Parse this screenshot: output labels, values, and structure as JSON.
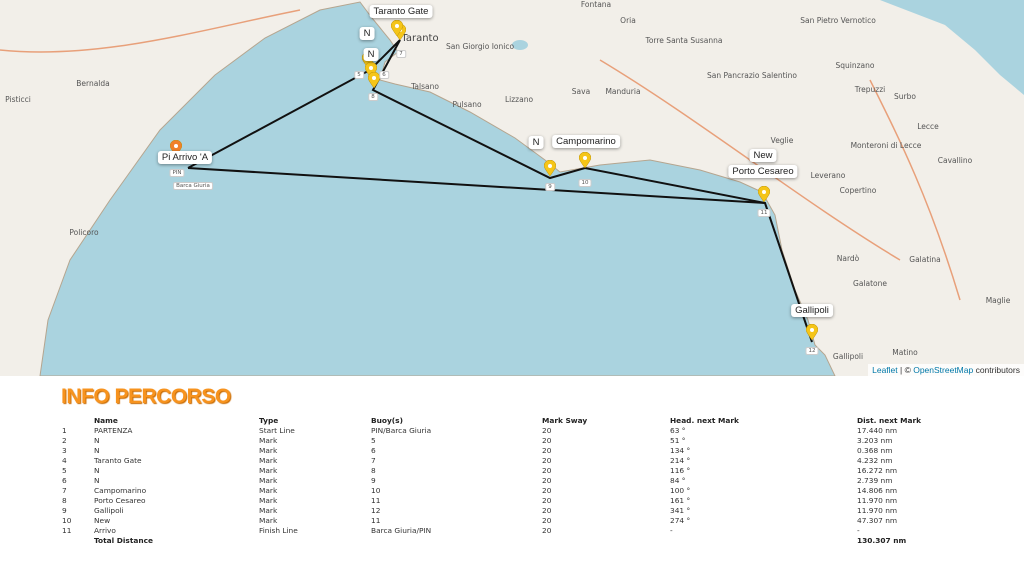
{
  "map": {
    "places": [
      "Fontana",
      "Oria",
      "San Pietro Vernotico",
      "Torre Santa Susanna",
      "Squinzano",
      "San Giorgio Ionico",
      "Bernalda",
      "Pisticci",
      "Talsano",
      "Pulsano",
      "Lizzano",
      "Sava",
      "Manduria",
      "San Pancrazio Salentino",
      "Trepuzzi",
      "Surbo",
      "Lecce",
      "Veglie",
      "Monteroni di Lecce",
      "Cavallino",
      "Leverano",
      "Copertino",
      "Policoro",
      "Nardò",
      "Galatina",
      "Galatone",
      "Maglie",
      "Matino",
      "Taranto",
      "Gallipoli"
    ],
    "marks": [
      {
        "label": "N",
        "buoy": "5"
      },
      {
        "label": "N",
        "buoy": "6"
      },
      {
        "label": "Taranto Gate",
        "buoy": "7"
      },
      {
        "label": "N",
        "buoy": "8"
      },
      {
        "label": "N",
        "buoy": "9"
      },
      {
        "label": "Campomarino",
        "buoy": "10"
      },
      {
        "label": "Porto Cesareo",
        "buoy": "11"
      },
      {
        "label": "Gallipoli",
        "buoy": "12"
      },
      {
        "label": "New",
        "buoy": "11"
      }
    ],
    "start_label": "Pi Arrivo 'A",
    "pin_tag": "PIN",
    "boat_tag": "Barca Giuria",
    "colors": {
      "sea": "#aad3df",
      "land": "#f2efe9",
      "route": "#111111",
      "mark_pin": "#f5c518",
      "start_pin": "#f0802a"
    },
    "attribution": {
      "leaflet": "Leaflet",
      "sep": " | © ",
      "osm": "OpenStreetMap",
      "rest": " contributors"
    }
  },
  "info": {
    "title": "INFO PERCORSO",
    "headers": [
      "",
      "Name",
      "Type",
      "Buoy(s)",
      "Mark Sway",
      "Head. next Mark",
      "Dist. next Mark"
    ],
    "rows": [
      [
        "1",
        "PARTENZA",
        "Start Line",
        "PIN/Barca Giuria",
        "20",
        "63 °",
        "17.440 nm"
      ],
      [
        "2",
        "N",
        "Mark",
        "5",
        "20",
        "51 °",
        "3.203 nm"
      ],
      [
        "3",
        "N",
        "Mark",
        "6",
        "20",
        "134 °",
        "0.368 nm"
      ],
      [
        "4",
        "Taranto Gate",
        "Mark",
        "7",
        "20",
        "214 °",
        "4.232 nm"
      ],
      [
        "5",
        "N",
        "Mark",
        "8",
        "20",
        "116 °",
        "16.272 nm"
      ],
      [
        "6",
        "N",
        "Mark",
        "9",
        "20",
        "84 °",
        "2.739 nm"
      ],
      [
        "7",
        "Campomarino",
        "Mark",
        "10",
        "20",
        "100 °",
        "14.806 nm"
      ],
      [
        "8",
        "Porto Cesareo",
        "Mark",
        "11",
        "20",
        "161 °",
        "11.970 nm"
      ],
      [
        "9",
        "Gallipoli",
        "Mark",
        "12",
        "20",
        "341 °",
        "11.970 nm"
      ],
      [
        "10",
        "New",
        "Mark",
        "11",
        "20",
        "274 °",
        "47.307 nm"
      ],
      [
        "11",
        "Arrivo",
        "Finish Line",
        "Barca Giuria/PIN",
        "20",
        "-",
        "-"
      ]
    ],
    "total_label": "Total Distance",
    "total_value": "130.307 nm"
  }
}
